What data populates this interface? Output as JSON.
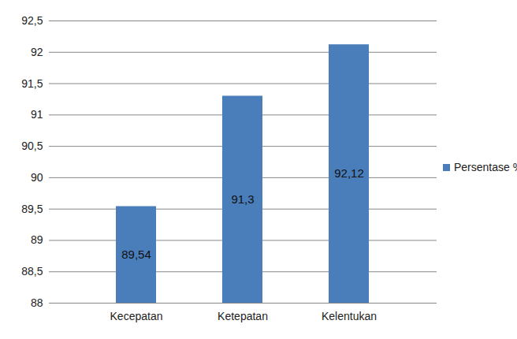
{
  "chart_data": {
    "type": "bar",
    "categories": [
      "Kecepatan",
      "Ketepatan",
      "Kelentukan"
    ],
    "series": [
      {
        "name": "Persentase %",
        "color": "#4a7ebb",
        "values": [
          89.54,
          91.3,
          92.12
        ],
        "value_labels": [
          "89,54",
          "91,3",
          "92,12"
        ]
      }
    ],
    "ylim": [
      88,
      92.5
    ],
    "yticks": [
      88,
      {
        "value": 88.5,
        "label": "88,5"
      },
      89,
      {
        "value": 89.5,
        "label": "89,5"
      },
      90,
      {
        "value": 90.5,
        "label": "90,5"
      },
      91,
      {
        "value": 91.5,
        "label": "91,5"
      },
      92,
      {
        "value": 92.5,
        "label": "92,5"
      }
    ],
    "grid": true,
    "legend": "right",
    "data_labels": true
  }
}
